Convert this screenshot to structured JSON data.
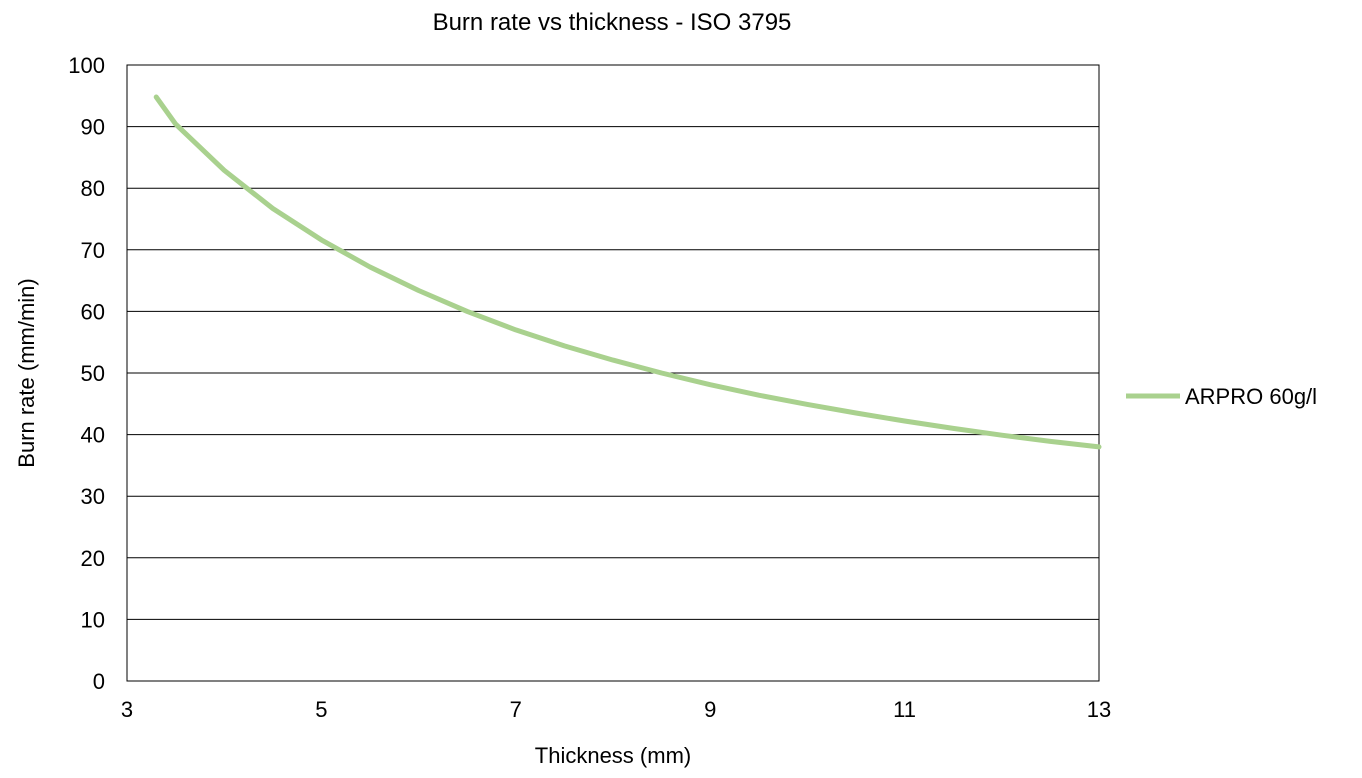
{
  "chart_data": {
    "type": "line",
    "title": "Burn rate vs thickness - ISO 3795",
    "xlabel": "Thickness (mm)",
    "ylabel": "Burn rate (mm/min)",
    "xlim": [
      3,
      13
    ],
    "ylim": [
      0,
      100
    ],
    "x_ticks": [
      3,
      5,
      7,
      9,
      11,
      13
    ],
    "y_ticks": [
      0,
      10,
      20,
      30,
      40,
      50,
      60,
      70,
      80,
      90,
      100
    ],
    "grid": "horizontal",
    "legend_position": "right",
    "series": [
      {
        "name": "ARPRO 60g/l",
        "color": "#a9d18e",
        "x": [
          3.3,
          3.5,
          4.0,
          4.5,
          5.0,
          5.5,
          6.0,
          6.5,
          7.0,
          7.5,
          8.0,
          8.5,
          9.0,
          9.5,
          10.0,
          10.5,
          11.0,
          11.5,
          12.0,
          12.5,
          13.0
        ],
        "values": [
          94.8,
          90.4,
          82.9,
          76.7,
          71.6,
          67.2,
          63.4,
          60.0,
          57.0,
          54.4,
          52.1,
          50.0,
          48.1,
          46.4,
          44.9,
          43.5,
          42.2,
          41.0,
          39.9,
          38.9,
          38.0
        ]
      }
    ]
  }
}
